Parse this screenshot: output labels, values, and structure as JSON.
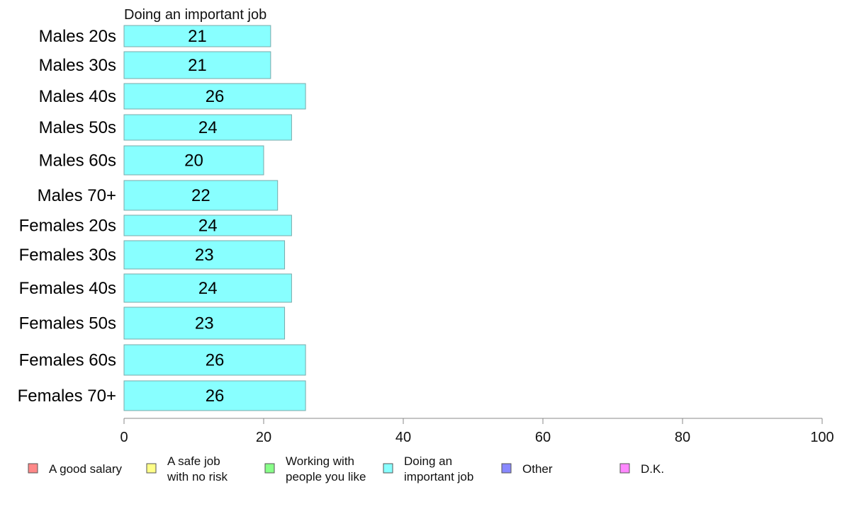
{
  "chart_data": {
    "type": "bar",
    "orientation": "horizontal",
    "title": "Doing an important job",
    "categories": [
      "Males 20s",
      "Males 30s",
      "Males 40s",
      "Males 50s",
      "Males 60s",
      "Males 70+",
      "Females 20s",
      "Females 30s",
      "Females 40s",
      "Females 50s",
      "Females 60s",
      "Females 70+"
    ],
    "values": [
      21,
      21,
      26,
      24,
      20,
      22,
      24,
      23,
      24,
      23,
      26,
      26
    ],
    "data_labels": [
      "21",
      "21",
      "26",
      "24",
      "20",
      "22",
      "24",
      "23",
      "24",
      "23",
      "26",
      "26"
    ],
    "xlim": [
      0,
      100
    ],
    "xticks": [
      "0",
      "20",
      "40",
      "60",
      "80",
      "100"
    ],
    "grid": false,
    "legend_position": "bottom",
    "legend": [
      {
        "lines": [
          "A good salary"
        ],
        "color": "#ff8888"
      },
      {
        "lines": [
          "A safe job",
          "with no risk"
        ],
        "color": "#ffff88"
      },
      {
        "lines": [
          "Working with",
          "people you like"
        ],
        "color": "#88ff88"
      },
      {
        "lines": [
          "Doing an",
          "important job"
        ],
        "color": "#88ffff"
      },
      {
        "lines": [
          "Other"
        ],
        "color": "#8888ff"
      },
      {
        "lines": [
          "D.K."
        ],
        "color": "#ff88ff"
      }
    ],
    "bar_color": "#88ffff",
    "bar_border_color": "#7aa9aa",
    "axis_color": "#888888"
  }
}
